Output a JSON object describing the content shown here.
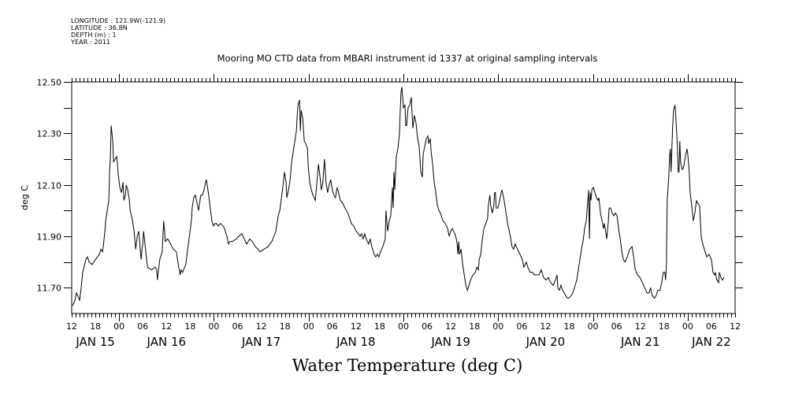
{
  "metadata": {
    "longitude": "LONGITUDE : 121.9W(-121.9)",
    "latitude": "LATITUDE : 36.8N",
    "depth": "DEPTH (m) : 1",
    "year": "YEAR : 2011"
  },
  "chart_data": {
    "type": "line",
    "title": "Mooring MO CTD data from MBARI instrument id 1337 at original sampling intervals",
    "xlabel": "Water Temperature (deg C)",
    "ylabel": "deg C",
    "x_units": "hours since JAN 15 2011 12:00",
    "xlim": [
      0,
      168
    ],
    "ylim": [
      11.6,
      12.5
    ],
    "grid": false,
    "line_color": "#000000",
    "y_ticks": [
      {
        "value": 12.5,
        "label": "12.50"
      },
      {
        "value": 12.4,
        "label": ""
      },
      {
        "value": 12.3,
        "label": "12.30"
      },
      {
        "value": 12.2,
        "label": ""
      },
      {
        "value": 12.1,
        "label": "12.10"
      },
      {
        "value": 12.0,
        "label": ""
      },
      {
        "value": 11.9,
        "label": "11.90"
      },
      {
        "value": 11.8,
        "label": ""
      },
      {
        "value": 11.7,
        "label": "11.70"
      }
    ],
    "x_ticks": [
      {
        "value": 0,
        "label": "12"
      },
      {
        "value": 6,
        "label": "18"
      },
      {
        "value": 12,
        "label": "00"
      },
      {
        "value": 18,
        "label": "06"
      },
      {
        "value": 24,
        "label": "12"
      },
      {
        "value": 30,
        "label": "18"
      },
      {
        "value": 36,
        "label": "00"
      },
      {
        "value": 42,
        "label": "06"
      },
      {
        "value": 48,
        "label": "12"
      },
      {
        "value": 54,
        "label": "18"
      },
      {
        "value": 60,
        "label": "00"
      },
      {
        "value": 66,
        "label": "06"
      },
      {
        "value": 72,
        "label": "12"
      },
      {
        "value": 78,
        "label": "18"
      },
      {
        "value": 84,
        "label": "00"
      },
      {
        "value": 90,
        "label": "06"
      },
      {
        "value": 96,
        "label": "12"
      },
      {
        "value": 102,
        "label": "18"
      },
      {
        "value": 108,
        "label": "00"
      },
      {
        "value": 114,
        "label": "06"
      },
      {
        "value": 120,
        "label": "12"
      },
      {
        "value": 126,
        "label": "18"
      },
      {
        "value": 132,
        "label": "00"
      },
      {
        "value": 138,
        "label": "06"
      },
      {
        "value": 144,
        "label": "12"
      },
      {
        "value": 150,
        "label": "18"
      },
      {
        "value": 156,
        "label": "00"
      },
      {
        "value": 162,
        "label": "06"
      },
      {
        "value": 168,
        "label": "12"
      }
    ],
    "date_labels": [
      {
        "value": 6,
        "label": "JAN 15"
      },
      {
        "value": 24,
        "label": "JAN 16"
      },
      {
        "value": 48,
        "label": "JAN 17"
      },
      {
        "value": 72,
        "label": "JAN 18"
      },
      {
        "value": 96,
        "label": "JAN 19"
      },
      {
        "value": 120,
        "label": "JAN 20"
      },
      {
        "value": 144,
        "label": "JAN 21"
      },
      {
        "value": 162,
        "label": "JAN 22"
      }
    ],
    "series": [
      {
        "name": "Water Temperature",
        "x": [
          0.2,
          0.8,
          1.2,
          1.8,
          2.0,
          2.4,
          2.8,
          3.6,
          4.0,
          4.4,
          5.2,
          6.0,
          7.0,
          7.4,
          7.8,
          8.0,
          8.4,
          8.6,
          9.0,
          9.4,
          9.6,
          9.8,
          10.0,
          10.4,
          10.6,
          11.0,
          11.4,
          11.6,
          11.8,
          12.2,
          12.6,
          13.0,
          13.2,
          13.6,
          13.8,
          14.2,
          14.6,
          14.8,
          15.4,
          15.8,
          16.2,
          16.6,
          17.0,
          17.4,
          17.6,
          17.8,
          18.0,
          18.2,
          19.2,
          20.2,
          21.1,
          21.5,
          21.7,
          21.9,
          22.3,
          22.9,
          23.3,
          23.7,
          24.3,
          24.7,
          25.7,
          26.5,
          27.1,
          27.5,
          27.7,
          28.1,
          28.9,
          29.3,
          29.7,
          30.3,
          30.5,
          30.9,
          31.3,
          32.1,
          32.7,
          33.1,
          33.5,
          33.9,
          34.1,
          34.3,
          34.7,
          35.1,
          35.5,
          35.9,
          36.3,
          36.7,
          37.1,
          37.7,
          38.3,
          38.7,
          39.3,
          39.7,
          40.1,
          40.7,
          41.7,
          42.3,
          43.1,
          43.7,
          44.3,
          45.1,
          45.7,
          46.5,
          47.7,
          48.7,
          49.7,
          50.7,
          51.7,
          52.3,
          52.7,
          53.3,
          53.9,
          54.3,
          54.5,
          54.9,
          55.3,
          55.7,
          56.1,
          56.5,
          56.9,
          57.1,
          57.3,
          57.7,
          57.9,
          58.1,
          58.5,
          58.9,
          59.3,
          59.7,
          59.9,
          60.3,
          60.7,
          61.1,
          61.7,
          62.1,
          62.5,
          62.9,
          63.2,
          63.6,
          64.0,
          64.4,
          64.8,
          65.2,
          65.6,
          66.0,
          66.4,
          66.8,
          67.2,
          67.6,
          68.0,
          68.6,
          69.2,
          69.6,
          70.2,
          70.8,
          71.4,
          72.0,
          72.6,
          73.0,
          73.4,
          73.8,
          74.2,
          74.6,
          75.2,
          75.6,
          76.0,
          76.6,
          77.0,
          77.4,
          77.8,
          78.2,
          78.8,
          79.4,
          79.6,
          80.0,
          80.4,
          80.8,
          81.2,
          81.4,
          81.6,
          81.8,
          82.2,
          82.6,
          83.0,
          83.2,
          83.4,
          83.6,
          83.8,
          84.0,
          84.4,
          84.6,
          84.8,
          85.2,
          85.6,
          86.0,
          86.4,
          86.8,
          87.2,
          87.6,
          88.0,
          88.2,
          88.4,
          88.8,
          89.0,
          89.4,
          89.8,
          90.2,
          90.4,
          90.8,
          91.0,
          91.4,
          91.8,
          92.2,
          92.6,
          93.0,
          93.4,
          94.0,
          94.6,
          95.2,
          95.6,
          96.0,
          96.4,
          97.0,
          97.4,
          97.6,
          97.8,
          98.0,
          98.2,
          98.6,
          99.0,
          99.4,
          99.8,
          100.2,
          100.6,
          101.0,
          101.6,
          102.2,
          102.6,
          103.0,
          103.2,
          103.6,
          104.0,
          104.4,
          104.9,
          105.3,
          105.5,
          105.9,
          106.1,
          106.5,
          106.9,
          107.1,
          107.3,
          107.5,
          107.9,
          108.1,
          108.5,
          108.9,
          109.1,
          109.5,
          110.1,
          110.5,
          111.1,
          111.5,
          111.9,
          112.3,
          112.9,
          113.5,
          114.1,
          114.5,
          115.1,
          115.5,
          116.1,
          116.7,
          117.1,
          117.7,
          118.3,
          118.9,
          119.5,
          120.1,
          120.7,
          121.3,
          121.9,
          122.5,
          122.9,
          123.1,
          123.5,
          123.9,
          124.3,
          124.7,
          125.1,
          125.5,
          125.9,
          126.5,
          126.9,
          127.1,
          127.5,
          127.9,
          128.3,
          128.7,
          129.1,
          129.5,
          129.9,
          130.3,
          130.5,
          130.7,
          130.9,
          131.1,
          131.3,
          131.5,
          131.7,
          132.1,
          132.5,
          132.9,
          133.3,
          133.5,
          133.9,
          134.3,
          134.7,
          134.9,
          135.3,
          135.5,
          135.9,
          136.1,
          136.5,
          136.9,
          137.3,
          137.7,
          138.1,
          138.5,
          138.9,
          139.3,
          139.7,
          140.1,
          140.7,
          141.3,
          141.9,
          142.3,
          142.7,
          143.3,
          143.9,
          144.5,
          145.1,
          145.7,
          146.2,
          146.6,
          147.0,
          147.6,
          148.0,
          148.4,
          149.0,
          149.4,
          149.8,
          150.2,
          150.4,
          150.6,
          150.8,
          151.2,
          151.4,
          151.6,
          151.8,
          152.0,
          152.2,
          152.4,
          152.8,
          153.0,
          153.4,
          153.6,
          153.8,
          154.0,
          154.2,
          154.6,
          155.0,
          155.4,
          155.8,
          156.0,
          156.4,
          156.6,
          157.0,
          157.4,
          157.8,
          158.2,
          158.4,
          159.0,
          159.4,
          159.8,
          160.2,
          160.8,
          161.4,
          162.0,
          162.4,
          162.8,
          163.0,
          163.4,
          163.8,
          164.0,
          164.4,
          164.8,
          165.2
        ],
        "y": [
          11.63,
          11.65,
          11.68,
          11.66,
          11.65,
          11.7,
          11.76,
          11.81,
          11.82,
          11.8,
          11.79,
          11.81,
          11.83,
          11.85,
          11.84,
          11.86,
          11.92,
          11.96,
          12.0,
          12.04,
          12.15,
          12.21,
          12.33,
          12.27,
          12.19,
          12.2,
          12.21,
          12.18,
          12.14,
          12.09,
          12.07,
          12.11,
          12.04,
          12.06,
          12.1,
          12.08,
          12.04,
          12.0,
          11.96,
          11.92,
          11.85,
          11.9,
          11.92,
          11.84,
          11.81,
          11.85,
          11.87,
          11.92,
          11.78,
          11.77,
          11.78,
          11.77,
          11.73,
          11.76,
          11.81,
          11.84,
          11.96,
          11.88,
          11.89,
          11.88,
          11.85,
          11.84,
          11.78,
          11.75,
          11.77,
          11.76,
          11.79,
          11.84,
          11.89,
          11.96,
          12.01,
          12.05,
          12.06,
          12.0,
          12.06,
          12.06,
          12.08,
          12.11,
          12.12,
          12.1,
          12.06,
          12.01,
          11.96,
          11.94,
          11.95,
          11.95,
          11.94,
          11.95,
          11.94,
          11.93,
          11.9,
          11.87,
          11.88,
          11.88,
          11.89,
          11.9,
          11.91,
          11.89,
          11.87,
          11.89,
          11.88,
          11.86,
          11.84,
          11.85,
          11.86,
          11.88,
          11.92,
          11.98,
          12.0,
          12.07,
          12.15,
          12.11,
          12.05,
          12.08,
          12.12,
          12.19,
          12.23,
          12.27,
          12.31,
          12.37,
          12.41,
          12.43,
          12.31,
          12.39,
          12.36,
          12.27,
          12.26,
          12.24,
          12.17,
          12.11,
          12.08,
          12.06,
          12.04,
          12.11,
          12.18,
          12.13,
          12.08,
          12.11,
          12.2,
          12.11,
          12.07,
          12.1,
          12.12,
          12.08,
          12.06,
          12.05,
          12.09,
          12.07,
          12.04,
          12.03,
          12.01,
          12.0,
          11.98,
          11.95,
          11.94,
          11.92,
          11.91,
          11.9,
          11.91,
          11.89,
          11.91,
          11.89,
          11.87,
          11.89,
          11.86,
          11.83,
          11.82,
          11.83,
          11.82,
          11.84,
          11.86,
          11.89,
          12.0,
          11.92,
          11.96,
          11.98,
          12.09,
          12.01,
          12.15,
          12.08,
          12.21,
          12.24,
          12.3,
          12.39,
          12.46,
          12.48,
          12.44,
          12.4,
          12.41,
          12.33,
          12.33,
          12.4,
          12.41,
          12.44,
          12.32,
          12.37,
          12.34,
          12.28,
          12.25,
          12.2,
          12.15,
          12.13,
          12.22,
          12.25,
          12.28,
          12.29,
          12.26,
          12.28,
          12.23,
          12.18,
          12.11,
          12.07,
          12.02,
          12.0,
          11.99,
          11.96,
          11.95,
          11.93,
          11.9,
          11.92,
          11.93,
          11.91,
          11.89,
          11.87,
          11.83,
          11.88,
          11.83,
          11.85,
          11.79,
          11.75,
          11.71,
          11.69,
          11.71,
          11.73,
          11.75,
          11.76,
          11.78,
          11.77,
          11.81,
          11.83,
          11.89,
          11.93,
          11.95,
          11.97,
          12.02,
          12.06,
          12.02,
          11.99,
          12.02,
          12.07,
          12.07,
          12.01,
          12.01,
          12.02,
          12.05,
          12.08,
          12.07,
          12.04,
          11.98,
          11.94,
          11.9,
          11.86,
          11.85,
          11.87,
          11.85,
          11.83,
          11.81,
          11.78,
          11.8,
          11.78,
          11.76,
          11.76,
          11.75,
          11.75,
          11.75,
          11.77,
          11.74,
          11.73,
          11.74,
          11.72,
          11.71,
          11.73,
          11.75,
          11.7,
          11.69,
          11.71,
          11.69,
          11.68,
          11.67,
          11.66,
          11.66,
          11.67,
          11.68,
          11.69,
          11.71,
          11.73,
          11.77,
          11.81,
          11.85,
          11.88,
          11.93,
          11.96,
          12.0,
          12.04,
          12.08,
          11.89,
          12.07,
          12.04,
          12.08,
          12.09,
          12.07,
          12.05,
          12.04,
          12.05,
          11.99,
          11.96,
          11.93,
          11.95,
          11.91,
          11.89,
          11.96,
          12.01,
          12.01,
          11.99,
          11.98,
          11.99,
          11.98,
          11.93,
          11.89,
          11.84,
          11.81,
          11.8,
          11.82,
          11.85,
          11.86,
          11.82,
          11.77,
          11.75,
          11.74,
          11.72,
          11.7,
          11.68,
          11.68,
          11.7,
          11.67,
          11.66,
          11.67,
          11.69,
          11.69,
          11.72,
          11.76,
          11.76,
          11.73,
          11.79,
          12.04,
          12.13,
          12.21,
          12.24,
          12.15,
          12.25,
          12.33,
          12.39,
          12.41,
          12.36,
          12.25,
          12.15,
          12.15,
          12.27,
          12.19,
          12.16,
          12.17,
          12.21,
          12.24,
          12.22,
          12.14,
          12.07,
          12.02,
          11.96,
          11.99,
          12.04,
          12.03,
          12.02,
          11.9,
          11.87,
          11.85,
          11.82,
          11.83,
          11.81,
          11.76,
          11.75,
          11.76,
          11.73,
          11.72,
          11.76,
          11.74,
          11.73,
          11.74
        ]
      }
    ]
  }
}
